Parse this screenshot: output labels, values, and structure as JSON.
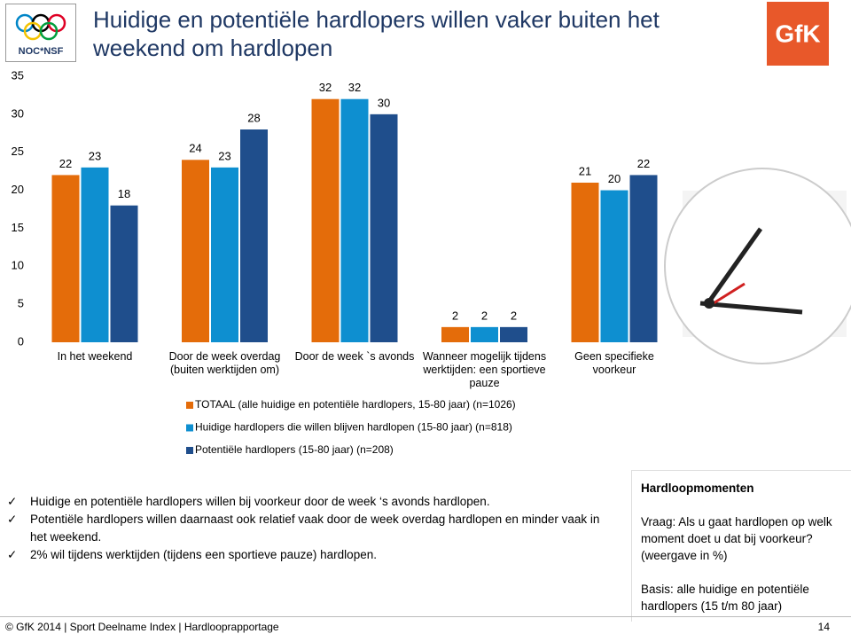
{
  "header": {
    "title": "Huidige en potentiële hardlopers willen vaker buiten het weekend om hardlopen",
    "logo_left": "NOC*NSF",
    "logo_right": "GfK"
  },
  "chart_data": {
    "type": "bar",
    "categories": [
      "In het weekend",
      "Door de week overdag (buiten werktijden om)",
      "Door de week `s avonds",
      "Wanneer mogelijk tijdens werktijden: een sportieve pauze",
      "Geen specifieke voorkeur"
    ],
    "series": [
      {
        "name": "TOTAAL (alle huidige en potentiële hardlopers, 15-80 jaar) (n=1026)",
        "color": "#e46c0a",
        "values": [
          22,
          24,
          32,
          2,
          21
        ]
      },
      {
        "name": "Huidige hardlopers die willen blijven hardlopen (15-80 jaar) (n=818)",
        "color": "#0e8fd0",
        "values": [
          23,
          23,
          32,
          2,
          20
        ]
      },
      {
        "name": "Potentiële hardlopers (15-80 jaar) (n=208)",
        "color": "#1f4e8c",
        "values": [
          18,
          28,
          30,
          2,
          22
        ]
      }
    ],
    "ylim": [
      0,
      35
    ],
    "yticks": [
      0,
      5,
      10,
      15,
      20,
      25,
      30,
      35
    ],
    "grid": false
  },
  "bullets": [
    "Huidige en potentiële hardlopers willen bij voorkeur door de week ‘s avonds hardlopen.",
    "Potentiële hardlopers willen daarnaast ook relatief vaak door de week overdag hardlopen en minder vaak in het weekend.",
    "2% wil tijdens werktijden (tijdens een sportieve pauze) hardlopen."
  ],
  "sidebar": {
    "heading": "Hardloopmomenten",
    "question": "Vraag: Als u gaat hardlopen op welk moment doet u dat bij voorkeur? (weergave in %)",
    "base": "Basis: alle huidige en potentiële hardlopers (15 t/m 80 jaar)"
  },
  "footer": {
    "source": "© GfK 2014 | Sport Deelname Index | Hardlooprapportage",
    "page": "14"
  }
}
